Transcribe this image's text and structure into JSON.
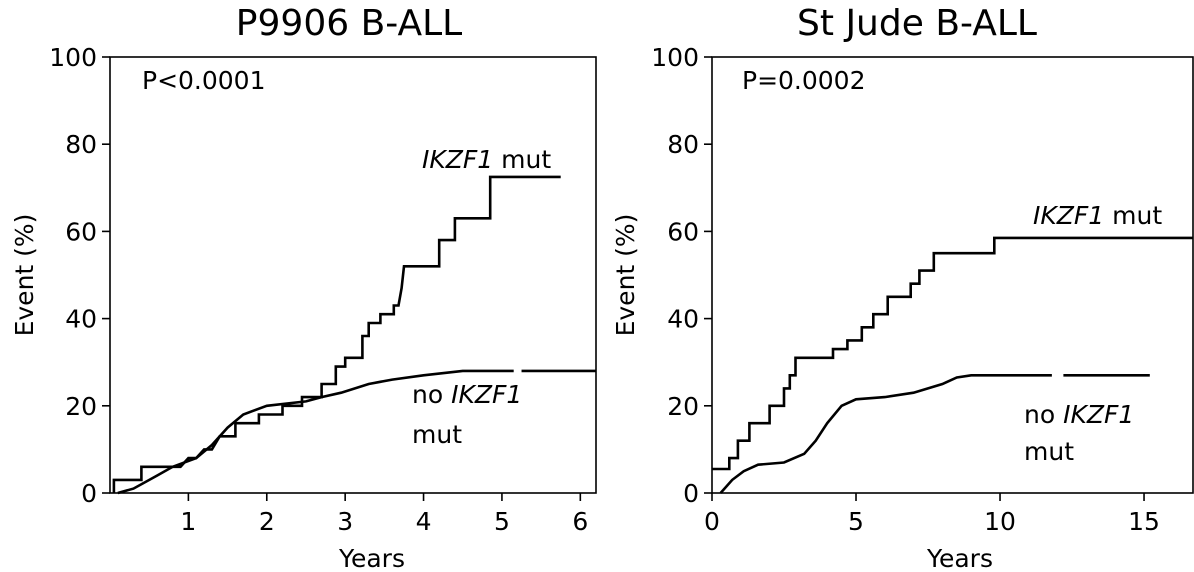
{
  "chart_data": [
    {
      "type": "line",
      "title": "P9906 B-ALL",
      "xlabel": "Years",
      "ylabel": "Event (%)",
      "xlim": [
        0,
        6.2
      ],
      "ylim": [
        0,
        100
      ],
      "xticks": [
        "1",
        "2",
        "3",
        "4",
        "5",
        "6"
      ],
      "yticks": [
        "0",
        "20",
        "40",
        "60",
        "80",
        "100"
      ],
      "p_value": "P<0.0001",
      "series": [
        {
          "label": {
            "name": "IKZF1",
            "suffix": " mut"
          },
          "points": [
            [
              0.05,
              0
            ],
            [
              0.05,
              3
            ],
            [
              0.4,
              3
            ],
            [
              0.4,
              6
            ],
            [
              0.9,
              6
            ],
            [
              1.0,
              8
            ],
            [
              1.1,
              8
            ],
            [
              1.2,
              10
            ],
            [
              1.3,
              10
            ],
            [
              1.4,
              13
            ],
            [
              1.6,
              13
            ],
            [
              1.6,
              16
            ],
            [
              1.9,
              16
            ],
            [
              1.9,
              18
            ],
            [
              2.2,
              18
            ],
            [
              2.2,
              20
            ],
            [
              2.45,
              20
            ],
            [
              2.45,
              22
            ],
            [
              2.7,
              22
            ],
            [
              2.7,
              25
            ],
            [
              2.88,
              25
            ],
            [
              2.88,
              29
            ],
            [
              3.0,
              29
            ],
            [
              3.0,
              31
            ],
            [
              3.22,
              31
            ],
            [
              3.22,
              36
            ],
            [
              3.3,
              36
            ],
            [
              3.3,
              39
            ],
            [
              3.45,
              39
            ],
            [
              3.45,
              41
            ],
            [
              3.62,
              41
            ],
            [
              3.62,
              43
            ],
            [
              3.68,
              43
            ],
            [
              3.72,
              47
            ],
            [
              3.75,
              52
            ],
            [
              4.2,
              52
            ],
            [
              4.2,
              58
            ],
            [
              4.4,
              58
            ],
            [
              4.4,
              63
            ],
            [
              4.85,
              63
            ],
            [
              4.85,
              72.5
            ],
            [
              5.75,
              72.5
            ]
          ]
        },
        {
          "label": {
            "prefix": "no ",
            "name": "IKZF1",
            "suffix": "mut"
          },
          "points": [
            [
              0.1,
              0
            ],
            [
              0.3,
              1
            ],
            [
              0.6,
              4
            ],
            [
              0.8,
              6
            ],
            [
              1.1,
              8
            ],
            [
              1.3,
              11
            ],
            [
              1.5,
              15
            ],
            [
              1.7,
              18
            ],
            [
              2.0,
              20
            ],
            [
              2.5,
              21
            ],
            [
              2.7,
              22
            ],
            [
              2.95,
              23
            ],
            [
              3.3,
              25
            ],
            [
              3.6,
              26
            ],
            [
              4.0,
              27
            ],
            [
              4.5,
              28
            ],
            [
              5.0,
              28
            ],
            [
              6.2,
              28
            ]
          ],
          "censor_gaps": [
            [
              5.15,
              5.25
            ]
          ]
        }
      ]
    },
    {
      "type": "line",
      "title": "St Jude B-ALL",
      "xlabel": "Years",
      "ylabel": "Event (%)",
      "xlim": [
        0,
        16.7
      ],
      "ylim": [
        0,
        100
      ],
      "xticks": [
        "0",
        "5",
        "10",
        "15"
      ],
      "yticks": [
        "0",
        "20",
        "40",
        "60",
        "80",
        "100"
      ],
      "p_value": "P=0.0002",
      "series": [
        {
          "label": {
            "name": "IKZF1",
            "suffix": " mut"
          },
          "points": [
            [
              0,
              5.5
            ],
            [
              0.6,
              5.5
            ],
            [
              0.6,
              8
            ],
            [
              0.9,
              8
            ],
            [
              0.9,
              12
            ],
            [
              1.3,
              12
            ],
            [
              1.3,
              16
            ],
            [
              2.0,
              16
            ],
            [
              2.0,
              20
            ],
            [
              2.5,
              20
            ],
            [
              2.5,
              24
            ],
            [
              2.7,
              24
            ],
            [
              2.7,
              27
            ],
            [
              2.9,
              27
            ],
            [
              2.9,
              31
            ],
            [
              4.2,
              31
            ],
            [
              4.2,
              33
            ],
            [
              4.7,
              33
            ],
            [
              4.7,
              35
            ],
            [
              5.2,
              35
            ],
            [
              5.2,
              38
            ],
            [
              5.6,
              38
            ],
            [
              5.6,
              41
            ],
            [
              6.1,
              41
            ],
            [
              6.1,
              45
            ],
            [
              6.9,
              45
            ],
            [
              6.9,
              48
            ],
            [
              7.2,
              48
            ],
            [
              7.2,
              51
            ],
            [
              7.7,
              51
            ],
            [
              7.7,
              55
            ],
            [
              9.8,
              55
            ],
            [
              9.8,
              58.5
            ],
            [
              16.7,
              58.5
            ]
          ]
        },
        {
          "label": {
            "prefix": "no ",
            "name": "IKZF1",
            "suffix": "mut"
          },
          "points": [
            [
              0.3,
              0
            ],
            [
              0.7,
              3
            ],
            [
              1.1,
              5
            ],
            [
              1.6,
              6.5
            ],
            [
              2.5,
              7
            ],
            [
              3.2,
              9
            ],
            [
              3.6,
              12
            ],
            [
              4.0,
              16
            ],
            [
              4.5,
              20
            ],
            [
              5.0,
              21.5
            ],
            [
              6.0,
              22
            ],
            [
              7.0,
              23
            ],
            [
              7.5,
              24
            ],
            [
              8.0,
              25
            ],
            [
              8.5,
              26.5
            ],
            [
              9.0,
              27
            ],
            [
              12.0,
              27
            ],
            [
              15.2,
              27
            ]
          ],
          "censor_gaps": [
            [
              11.8,
              12.2
            ]
          ]
        }
      ]
    }
  ]
}
